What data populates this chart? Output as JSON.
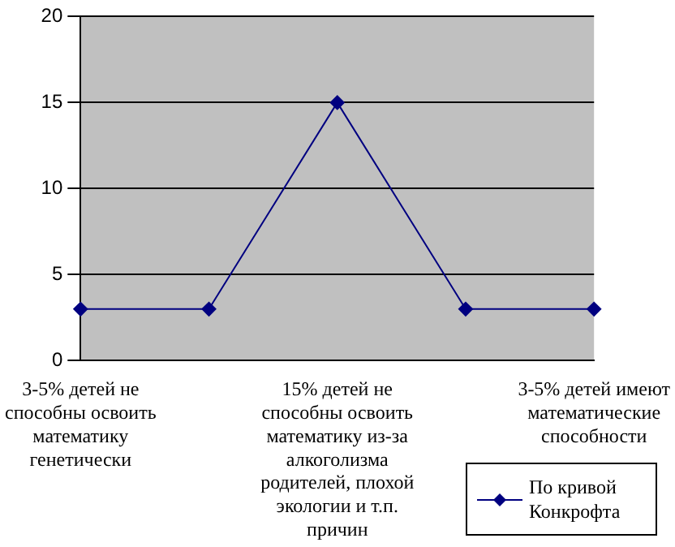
{
  "chart_data": {
    "type": "line",
    "categories": [
      "3-5% детей не способны освоить математику генетически",
      null,
      "15% детей не способны освоить математику из-за алкоголизма родителей, плохой экологии и т.п. причин",
      null,
      "3-5% детей имеют математические способности"
    ],
    "series": [
      {
        "name": "По кривой Конкрофта",
        "color": "#000080",
        "values": [
          3,
          3,
          15,
          3,
          3
        ]
      }
    ],
    "ylim": [
      0,
      20
    ],
    "yticks": [
      0,
      5,
      10,
      15,
      20
    ],
    "grid": "y",
    "legend": "bottom right",
    "marker": "diamond",
    "line_style": "solid"
  }
}
